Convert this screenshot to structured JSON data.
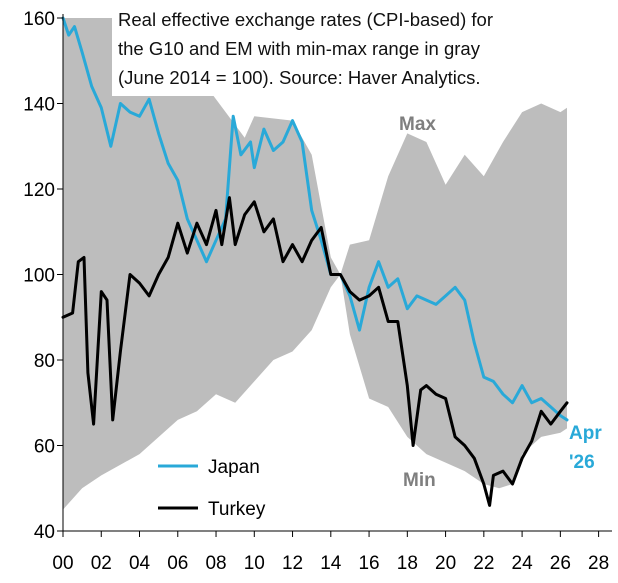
{
  "chart_data": {
    "type": "area",
    "title_lines": [
      "Real effective exchange rates (CPI-based) for",
      "the G10 and EM with min-max range in gray",
      "(June 2014 = 100). Source: Haver Analytics."
    ],
    "xlim": [
      2000,
      2028.7
    ],
    "ylim": [
      40,
      160
    ],
    "x_ticks": [
      {
        "v": 2000,
        "label": "00"
      },
      {
        "v": 2002,
        "label": "02"
      },
      {
        "v": 2004,
        "label": "04"
      },
      {
        "v": 2006,
        "label": "06"
      },
      {
        "v": 2008,
        "label": "08"
      },
      {
        "v": 2010,
        "label": "10"
      },
      {
        "v": 2012,
        "label": "12"
      },
      {
        "v": 2014,
        "label": "14"
      },
      {
        "v": 2016,
        "label": "16"
      },
      {
        "v": 2018,
        "label": "18"
      },
      {
        "v": 2020,
        "label": "20"
      },
      {
        "v": 2022,
        "label": "22"
      },
      {
        "v": 2024,
        "label": "24"
      },
      {
        "v": 2026,
        "label": "26"
      },
      {
        "v": 2028,
        "label": "28"
      }
    ],
    "y_ticks": [
      40,
      60,
      80,
      100,
      120,
      140,
      160
    ],
    "grid": false,
    "band": {
      "max_label": "Max",
      "min_label": "Min",
      "color": "#bdbdbd",
      "max": [
        [
          2000,
          160
        ],
        [
          2006,
          160
        ],
        [
          2006.5,
          150
        ],
        [
          2009.5,
          132
        ],
        [
          2010,
          137
        ],
        [
          2012,
          136
        ],
        [
          2013,
          128
        ],
        [
          2014,
          104
        ],
        [
          2014.5,
          100
        ],
        [
          2015,
          107
        ],
        [
          2016,
          108
        ],
        [
          2017,
          123
        ],
        [
          2018,
          133
        ],
        [
          2019,
          131
        ],
        [
          2020,
          121
        ],
        [
          2021,
          128
        ],
        [
          2022,
          123
        ],
        [
          2023,
          131
        ],
        [
          2024,
          138
        ],
        [
          2025,
          140
        ],
        [
          2026,
          138
        ],
        [
          2026.35,
          139
        ]
      ],
      "min": [
        [
          2000,
          45
        ],
        [
          2001,
          50
        ],
        [
          2002,
          53
        ],
        [
          2004,
          58
        ],
        [
          2006,
          66
        ],
        [
          2007,
          68
        ],
        [
          2008,
          72
        ],
        [
          2009,
          70
        ],
        [
          2010,
          75
        ],
        [
          2011,
          80
        ],
        [
          2012,
          82
        ],
        [
          2013,
          87
        ],
        [
          2014,
          97
        ],
        [
          2014.5,
          100
        ],
        [
          2015,
          86
        ],
        [
          2016,
          71
        ],
        [
          2017,
          69
        ],
        [
          2018,
          62
        ],
        [
          2019,
          58
        ],
        [
          2020,
          56
        ],
        [
          2021,
          54
        ],
        [
          2022,
          51
        ],
        [
          2022.8,
          50
        ],
        [
          2023.5,
          51
        ],
        [
          2024,
          58
        ],
        [
          2025,
          62
        ],
        [
          2026,
          63
        ],
        [
          2026.35,
          64
        ]
      ]
    },
    "series": [
      {
        "name": "Japan",
        "color": "#29a9d8",
        "points": [
          [
            2000,
            160
          ],
          [
            2000.3,
            156
          ],
          [
            2000.6,
            158
          ],
          [
            2001,
            152
          ],
          [
            2001.5,
            144
          ],
          [
            2002,
            139
          ],
          [
            2002.5,
            130
          ],
          [
            2003,
            140
          ],
          [
            2003.5,
            138
          ],
          [
            2004,
            137
          ],
          [
            2004.5,
            141
          ],
          [
            2005,
            133
          ],
          [
            2005.5,
            126
          ],
          [
            2006,
            122
          ],
          [
            2006.5,
            113
          ],
          [
            2007,
            108
          ],
          [
            2007.5,
            103
          ],
          [
            2008,
            108
          ],
          [
            2008.5,
            113
          ],
          [
            2008.9,
            137
          ],
          [
            2009.3,
            128
          ],
          [
            2009.8,
            131
          ],
          [
            2010,
            125
          ],
          [
            2010.5,
            134
          ],
          [
            2011,
            129
          ],
          [
            2011.5,
            131
          ],
          [
            2012,
            136
          ],
          [
            2012.5,
            131
          ],
          [
            2013,
            115
          ],
          [
            2013.5,
            108
          ],
          [
            2014,
            100
          ],
          [
            2014.5,
            100
          ],
          [
            2015,
            95
          ],
          [
            2015.5,
            87
          ],
          [
            2016,
            97
          ],
          [
            2016.5,
            103
          ],
          [
            2017,
            97
          ],
          [
            2017.5,
            99
          ],
          [
            2018,
            92
          ],
          [
            2018.5,
            95
          ],
          [
            2019,
            94
          ],
          [
            2019.5,
            93
          ],
          [
            2020,
            95
          ],
          [
            2020.5,
            97
          ],
          [
            2021,
            94
          ],
          [
            2021.5,
            84
          ],
          [
            2022,
            76
          ],
          [
            2022.5,
            75
          ],
          [
            2023,
            72
          ],
          [
            2023.5,
            70
          ],
          [
            2024,
            74
          ],
          [
            2024.5,
            70
          ],
          [
            2025,
            71
          ],
          [
            2025.5,
            69
          ],
          [
            2026,
            67
          ],
          [
            2026.35,
            66
          ]
        ]
      },
      {
        "name": "Turkey",
        "color": "#000000",
        "points": [
          [
            2000,
            90
          ],
          [
            2000.5,
            91
          ],
          [
            2000.8,
            103
          ],
          [
            2001.1,
            104
          ],
          [
            2001.3,
            77
          ],
          [
            2001.6,
            65
          ],
          [
            2002,
            96
          ],
          [
            2002.3,
            94
          ],
          [
            2002.6,
            66
          ],
          [
            2003,
            82
          ],
          [
            2003.5,
            100
          ],
          [
            2004,
            98
          ],
          [
            2004.5,
            95
          ],
          [
            2005,
            100
          ],
          [
            2005.5,
            104
          ],
          [
            2006,
            112
          ],
          [
            2006.5,
            105
          ],
          [
            2007,
            112
          ],
          [
            2007.5,
            107
          ],
          [
            2008,
            115
          ],
          [
            2008.3,
            107
          ],
          [
            2008.7,
            118
          ],
          [
            2009,
            107
          ],
          [
            2009.5,
            114
          ],
          [
            2010,
            117
          ],
          [
            2010.5,
            110
          ],
          [
            2011,
            113
          ],
          [
            2011.5,
            103
          ],
          [
            2012,
            107
          ],
          [
            2012.5,
            103
          ],
          [
            2013,
            108
          ],
          [
            2013.5,
            111
          ],
          [
            2014,
            100
          ],
          [
            2014.5,
            100
          ],
          [
            2015,
            96
          ],
          [
            2015.5,
            94
          ],
          [
            2016,
            95
          ],
          [
            2016.5,
            97
          ],
          [
            2017,
            89
          ],
          [
            2017.5,
            89
          ],
          [
            2018,
            74
          ],
          [
            2018.3,
            60
          ],
          [
            2018.7,
            73
          ],
          [
            2019,
            74
          ],
          [
            2019.5,
            72
          ],
          [
            2020,
            71
          ],
          [
            2020.5,
            62
          ],
          [
            2021,
            60
          ],
          [
            2021.5,
            57
          ],
          [
            2022,
            51
          ],
          [
            2022.3,
            46
          ],
          [
            2022.5,
            53
          ],
          [
            2023,
            54
          ],
          [
            2023.5,
            51
          ],
          [
            2024,
            57
          ],
          [
            2024.5,
            61
          ],
          [
            2025,
            68
          ],
          [
            2025.5,
            65
          ],
          [
            2026,
            68
          ],
          [
            2026.35,
            70
          ]
        ]
      }
    ],
    "end_label_lines": [
      "Apr",
      "'26"
    ],
    "legend": {
      "placement": "bottom-left"
    }
  }
}
